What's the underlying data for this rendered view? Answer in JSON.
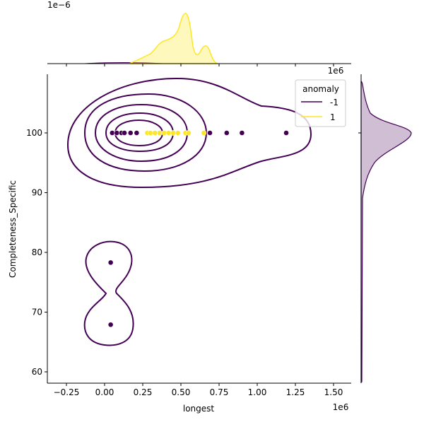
{
  "chart_data": {
    "type": "scatter",
    "kind": "jointplot with KDE contours and marginal KDEs",
    "xlabel": "longest",
    "ylabel": "Completeness_Specific",
    "x_offset_label": "1e6",
    "top_marginal_offset_label": "1e−6",
    "xlim": [
      -0.37,
      1.6
    ],
    "ylim": [
      58,
      110
    ],
    "x_ticks": [
      "−0.25",
      "0.00",
      "0.25",
      "0.50",
      "0.75",
      "1.00",
      "1.25",
      "1.50"
    ],
    "x_tick_values": [
      -0.25,
      0,
      0.25,
      0.5,
      0.75,
      1.0,
      1.25,
      1.5
    ],
    "y_ticks": [
      "60",
      "70",
      "80",
      "90",
      "100"
    ],
    "y_tick_values": [
      60,
      70,
      80,
      90,
      100
    ],
    "legend": {
      "title": "anomaly",
      "position": "upper-right",
      "entries": [
        {
          "label": "-1",
          "color": "#440154"
        },
        {
          "label": "1",
          "color": "#fde725"
        }
      ]
    },
    "series": [
      {
        "name": "-1",
        "color": "#440154",
        "x": [
          0.04,
          0.04,
          0.05,
          0.08,
          0.11,
          0.13,
          0.17,
          0.21,
          0.69,
          0.8,
          0.9,
          1.19
        ],
        "y": [
          78.3,
          67.9,
          100,
          100,
          100,
          100,
          100,
          100,
          100,
          100,
          100,
          100
        ]
      },
      {
        "name": "1",
        "color": "#fde725",
        "x": [
          0.28,
          0.3,
          0.33,
          0.36,
          0.39,
          0.42,
          0.45,
          0.48,
          0.53,
          0.55,
          0.65
        ],
        "y": [
          100,
          100,
          100,
          100,
          100,
          100,
          100,
          100,
          100,
          100,
          100
        ]
      }
    ],
    "grid": false
  }
}
